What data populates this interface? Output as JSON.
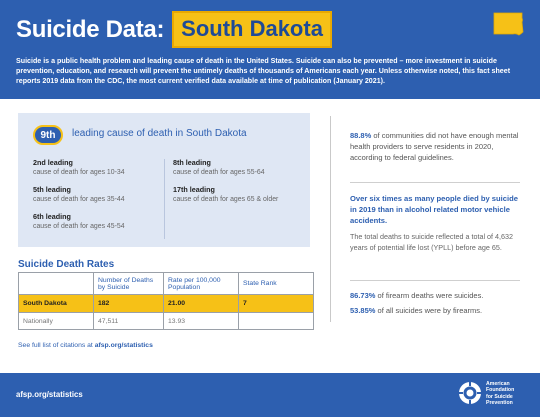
{
  "header": {
    "title_main": "Suicide Data:",
    "title_state": "South Dakota",
    "intro": "Suicide is a public health problem and leading cause of death in the United States. Suicide can also be prevented – more investment in suicide prevention, education, and research will prevent the untimely deaths of thousands of Americans each year. Unless otherwise noted, this fact sheet reports 2019 data from the CDC, the most current verified data available at time of publication (January 2021)."
  },
  "ranking": {
    "badge": "9th",
    "headline": "leading cause of death in South Dakota",
    "left_items": [
      {
        "rank": "2nd leading",
        "detail": "cause of death for ages 10-34"
      },
      {
        "rank": "5th leading",
        "detail": "cause of death for ages 35-44"
      },
      {
        "rank": "6th leading",
        "detail": "cause of death for ages 45-54"
      }
    ],
    "right_items": [
      {
        "rank": "8th leading",
        "detail": "cause of death for ages 55-64"
      },
      {
        "rank": "17th leading",
        "detail": "cause of death for ages 65 & older"
      }
    ]
  },
  "rates": {
    "title": "Suicide Death Rates",
    "headers": [
      "",
      "Number of Deaths by Suicide",
      "Rate per 100,000 Population",
      "State Rank"
    ],
    "rows": [
      [
        "South Dakota",
        "182",
        "21.00",
        "7"
      ],
      [
        "Nationally",
        "47,511",
        "13.93",
        ""
      ]
    ]
  },
  "citation": {
    "prefix": "See full list of citations at ",
    "link": "afsp.org/statistics"
  },
  "facts": {
    "f1_pct": "88.8%",
    "f1_text": " of communities did not have enough mental health providers to serve residents in 2020, according to federal guidelines.",
    "f2": "Over six times as many people died by suicide in 2019 than in alcohol related motor vehicle accidents.",
    "f3": "The total deaths to suicide reflected a total of 4,632 years of potential life lost (YPLL) before age 65.",
    "f4_pct": "86.73%",
    "f4_text": " of firearm deaths were suicides.",
    "f5_pct": "53.85%",
    "f5_text": " of all suicides were by firearms."
  },
  "footer": {
    "url": "afsp.org/statistics",
    "logo_lines": [
      "American",
      "Foundation",
      "for Suicide",
      "Prevention"
    ]
  },
  "colors": {
    "brand_blue": "#2d5fb0",
    "accent_yellow": "#f6c117",
    "card_bg": "#dfe7f4"
  }
}
